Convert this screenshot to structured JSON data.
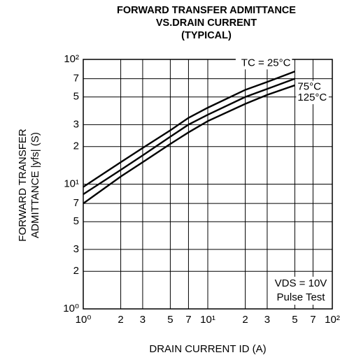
{
  "chart_data": {
    "type": "line",
    "title": [
      "FORWARD TRANSFER ADMITTANCE",
      "VS.DRAIN CURRENT",
      "(TYPICAL)"
    ],
    "y_label": [
      "FORWARD TRANSFER",
      "ADMITTANCE  |yfs| (S)"
    ],
    "x_label": "DRAIN CURRENT   ID (A)",
    "annotations": [
      "VDS = 10V",
      "Pulse Test"
    ],
    "x": [
      1,
      2,
      3,
      5,
      7,
      10,
      20,
      30,
      50
    ],
    "series": [
      {
        "name": "TC = 25°C",
        "color": "#000000",
        "values": [
          9.5,
          15,
          19.5,
          27,
          34,
          41,
          57,
          66,
          80
        ]
      },
      {
        "name": "75°C",
        "color": "#000000",
        "values": [
          8.3,
          13,
          17,
          24,
          30,
          36,
          50,
          58,
          70
        ]
      },
      {
        "name": "125°C",
        "color": "#000000",
        "values": [
          7,
          11.5,
          15,
          21,
          26,
          32,
          44,
          52,
          62
        ]
      }
    ],
    "xlog": true,
    "ylog": true,
    "xlim": [
      1,
      100
    ],
    "ylim": [
      1,
      100
    ],
    "xticks": [
      {
        "value": 1,
        "label": "10⁰"
      },
      2,
      3,
      5,
      7,
      {
        "value": 10,
        "label": "10¹"
      },
      {
        "value": 20,
        "label": "2"
      },
      {
        "value": 30,
        "label": "3"
      },
      {
        "value": 50,
        "label": "5"
      },
      {
        "value": 70,
        "label": "7"
      },
      {
        "value": 100,
        "label": "10²"
      }
    ],
    "yticks": [
      {
        "value": 1,
        "label": "10⁰"
      },
      2,
      3,
      5,
      7,
      {
        "value": 10,
        "label": "10¹"
      },
      {
        "value": 20,
        "label": "2"
      },
      {
        "value": 30,
        "label": "3"
      },
      {
        "value": 50,
        "label": "5"
      },
      {
        "value": 70,
        "label": "7"
      },
      {
        "value": 100,
        "label": "10²"
      }
    ],
    "grid": true
  }
}
